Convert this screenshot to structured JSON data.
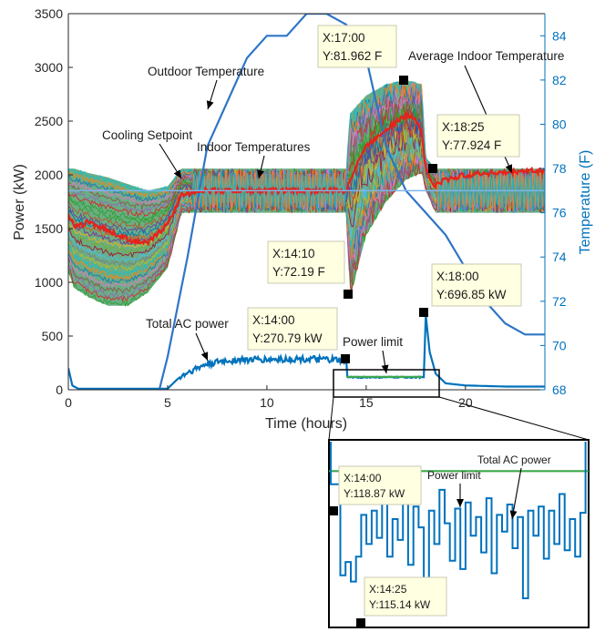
{
  "chart_data": [
    {
      "type": "line",
      "xlabel": "Time (hours)",
      "ylabel": "Power (kW)",
      "y2label": "Temperature (F)",
      "xlim": [
        0,
        24
      ],
      "ylim": [
        0,
        3500
      ],
      "y2lim": [
        68,
        85
      ],
      "x_ticks": [
        "0",
        "5",
        "10",
        "15",
        "20"
      ],
      "y_ticks": [
        "0",
        "500",
        "1000",
        "1500",
        "2000",
        "2500",
        "3000",
        "3500"
      ],
      "y2_ticks": [
        "68",
        "70",
        "72",
        "74",
        "76",
        "78",
        "80",
        "82",
        "84"
      ],
      "grid": false,
      "series": [
        {
          "name": "Outdoor Temperature",
          "axis": "right",
          "color": "#2E75C6",
          "x": [
            0,
            4.3,
            5,
            6,
            7,
            8,
            9,
            10,
            11,
            12,
            13,
            14,
            15,
            16,
            17,
            18,
            19,
            20,
            21,
            22,
            23,
            24
          ],
          "y": [
            64,
            67,
            69.5,
            74,
            79,
            81,
            83,
            84,
            84,
            85,
            85,
            84.5,
            83,
            79,
            77,
            76,
            75,
            73.5,
            72,
            71,
            70.5,
            70.5
          ]
        },
        {
          "name": "Average Indoor Temperature",
          "axis": "right",
          "color": "#E8211B",
          "x": [
            0,
            0.3,
            1,
            2,
            3,
            4,
            5,
            5.7,
            6.5,
            8,
            10,
            12,
            13.9,
            14,
            14.5,
            15,
            16,
            17,
            17.5,
            17.8,
            18,
            18.4,
            19,
            20,
            21,
            22,
            23,
            24
          ],
          "y": [
            76,
            75.3,
            75.6,
            75.2,
            74.8,
            74.6,
            75.5,
            76.8,
            77.0,
            77.0,
            77.0,
            77.0,
            77.0,
            77.0,
            78.2,
            79.0,
            79.8,
            80.4,
            80.3,
            79.6,
            78.0,
            77.2,
            77.5,
            77.7,
            77.8,
            77.8,
            77.9,
            77.9
          ]
        },
        {
          "name": "Total AC power",
          "axis": "left",
          "color": "#0072BD",
          "x": [
            0,
            0.2,
            0.5,
            5,
            5.5,
            6,
            6.5,
            7,
            8,
            9,
            10,
            11,
            12,
            13,
            14,
            14.05,
            15,
            16,
            17,
            17.5,
            17.9,
            18.0,
            18.2,
            18.5,
            19,
            20,
            21,
            22,
            23,
            24
          ],
          "y": [
            200,
            40,
            10,
            10,
            100,
            160,
            200,
            240,
            270,
            280,
            280,
            285,
            285,
            280,
            270.79,
            118.87,
            118,
            118,
            117,
            117,
            117,
            696.85,
            350,
            150,
            60,
            40,
            35,
            30,
            30,
            30
          ]
        },
        {
          "name": "Power limit",
          "axis": "left",
          "color": "#3BA84A",
          "x": [
            14.0,
            17.8
          ],
          "y": [
            120,
            120
          ]
        },
        {
          "name": "Cooling Setpoint",
          "axis": "right",
          "color": "#7DB6E8",
          "x": [
            0,
            24
          ],
          "y": [
            77,
            77
          ]
        }
      ],
      "indoor_band": {
        "name": "Indoor Temperatures",
        "x": [
          0,
          0.3,
          1,
          2,
          3,
          4,
          5,
          5.7,
          6.5,
          14,
          14.2,
          15,
          16,
          17,
          17.8,
          18,
          18.5,
          24
        ],
        "upper": [
          78,
          78,
          77.8,
          77.6,
          77.3,
          77,
          77.2,
          78,
          78,
          78,
          80.5,
          81.3,
          81.8,
          82,
          81.8,
          78.5,
          78,
          78
        ],
        "lower": [
          73.3,
          72.6,
          72.2,
          71.8,
          71.8,
          72.4,
          73.5,
          76,
          76,
          76,
          72.2,
          75.0,
          76.5,
          77.5,
          77.8,
          77.0,
          76.0,
          76.0
        ]
      },
      "annotations": [
        {
          "text": "Outdoor Temperature",
          "x": 7.1,
          "y_temp": 79.2
        },
        {
          "text": "Cooling Setpoint",
          "x": 5.7,
          "y_temp": 77.3
        },
        {
          "text": "Indoor Temperatures",
          "x": 9.6,
          "y_temp": 77.6
        },
        {
          "text": "Average Indoor Temperature",
          "x": 20.5,
          "y_temp": 80.5
        },
        {
          "text": "Total AC power",
          "x": 6.4,
          "y_power": 140
        },
        {
          "text": "Power limit",
          "x": 16.0,
          "y_power": 120
        }
      ],
      "datatips": [
        {
          "x_label": "X:17:00",
          "y_label": "Y:81.962 F",
          "x": 16.9,
          "y_temp": 82.0
        },
        {
          "x_label": "X:18:25",
          "y_label": "Y:77.924 F",
          "x": 18.4,
          "y_temp": 77.8
        },
        {
          "x_label": "X:14:10",
          "y_label": "Y:72.19 F",
          "x": 14.15,
          "y_temp": 72.2
        },
        {
          "x_label": "X:18:00",
          "y_label": "Y:696.85 kW",
          "x": 17.9,
          "y_power": 700
        },
        {
          "x_label": "X:14:00",
          "y_label": "Y:270.79 kW",
          "x": 13.9,
          "y_power": 275
        }
      ]
    },
    {
      "type": "line",
      "subplot": "zoom inset",
      "x_range": [
        13.9,
        18.1
      ],
      "y_range": [
        112,
        121
      ],
      "series": [
        {
          "name": "Power limit",
          "color": "#3BA84A",
          "x": [
            13.9,
            18.1
          ],
          "y": [
            119.5,
            119.5
          ]
        },
        {
          "name": "Total AC power",
          "color": "#0072BD"
        }
      ],
      "annotations": [
        {
          "text": "Power limit",
          "x": 15.85,
          "y": 119.5
        },
        {
          "text": "Total AC power",
          "x": 16.8,
          "y": 118.5
        }
      ],
      "datatips": [
        {
          "x_label": "X:14:00",
          "y_label": "Y:118.87 kW",
          "x": 13.98,
          "y": 118.87
        },
        {
          "x_label": "X:14:25",
          "y_label": "Y:115.14 kW",
          "x": 14.35,
          "y": 115.14
        }
      ]
    }
  ]
}
